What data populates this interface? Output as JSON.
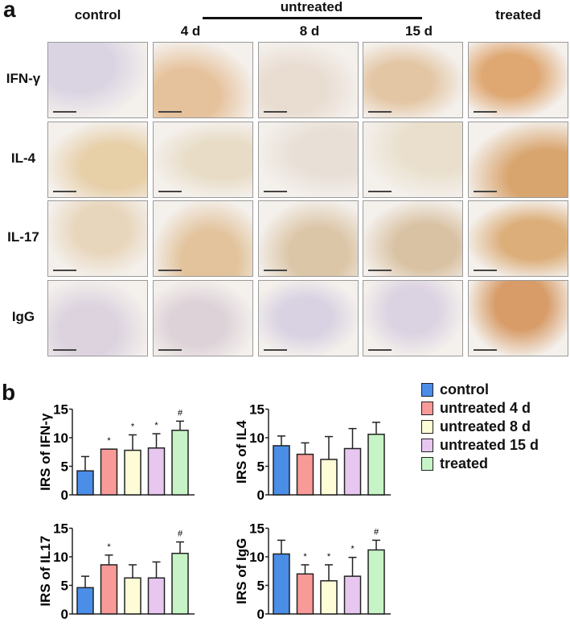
{
  "panel_a": {
    "letter": "a",
    "group_label": "untreated",
    "columns": [
      "control",
      "4 d",
      "8 d",
      "15 d",
      "treated"
    ],
    "rows": [
      "IFN-γ",
      "IL-4",
      "IL-17",
      "IgG"
    ],
    "tile_tints": [
      [
        "#d9d3e2",
        "#e6c29c",
        "#e9ddd2",
        "#e3c6a4",
        "#dfa873"
      ],
      [
        "#e7cfa8",
        "#e8dcc6",
        "#e8dfd6",
        "#e9dfcc",
        "#d9a56f"
      ],
      [
        "#e8d6bc",
        "#e2c39c",
        "#dcc6a8",
        "#d9c2a3",
        "#dcae7a"
      ],
      [
        "#dcd3df",
        "#ddd2d8",
        "#d8d2e2",
        "#dbd3e2",
        "#d79c68"
      ]
    ]
  },
  "panel_b": {
    "letter": "b",
    "legend": [
      {
        "label": "control",
        "color": "#4a8ee8"
      },
      {
        "label": "untreated 4 d",
        "color": "#f89a98"
      },
      {
        "label": "untreated 8 d",
        "color": "#fdfcd6"
      },
      {
        "label": "untreated 15 d",
        "color": "#e7c6f0"
      },
      {
        "label": "treated",
        "color": "#c6f4c6"
      }
    ]
  },
  "chart_data": [
    {
      "type": "bar",
      "title": "",
      "ylabel": "IRS of IFN-γ",
      "xlabel": "",
      "ylim": [
        0,
        15
      ],
      "yticks": [
        0,
        5,
        10,
        15
      ],
      "categories": [
        "control",
        "untreated 4 d",
        "untreated 8 d",
        "untreated 15 d",
        "treated"
      ],
      "values": [
        4.2,
        8.0,
        7.8,
        8.2,
        11.3
      ],
      "error_top": [
        6.7,
        8.0,
        10.5,
        10.7,
        12.9
      ],
      "annotations": [
        "",
        "*",
        "*",
        "*",
        "#"
      ],
      "grid": false
    },
    {
      "type": "bar",
      "title": "",
      "ylabel": "IRS of IL4",
      "xlabel": "",
      "ylim": [
        0,
        15
      ],
      "yticks": [
        0,
        5,
        10,
        15
      ],
      "categories": [
        "control",
        "untreated 4 d",
        "untreated 8 d",
        "untreated 15 d",
        "treated"
      ],
      "values": [
        8.6,
        7.1,
        6.2,
        8.1,
        10.6
      ],
      "error_top": [
        10.3,
        9.1,
        10.2,
        11.6,
        12.7
      ],
      "annotations": [
        "",
        "",
        "",
        "",
        ""
      ],
      "grid": false
    },
    {
      "type": "bar",
      "title": "",
      "ylabel": "IRS of IL17",
      "xlabel": "",
      "ylim": [
        0,
        15
      ],
      "yticks": [
        0,
        5,
        10,
        15
      ],
      "categories": [
        "control",
        "untreated 4 d",
        "untreated 8 d",
        "untreated 15 d",
        "treated"
      ],
      "values": [
        4.6,
        8.6,
        6.3,
        6.3,
        10.6
      ],
      "error_top": [
        6.6,
        10.3,
        8.6,
        9.1,
        12.6
      ],
      "annotations": [
        "",
        "*",
        "",
        "",
        "#"
      ],
      "grid": false
    },
    {
      "type": "bar",
      "title": "",
      "ylabel": "IRS of IgG",
      "xlabel": "",
      "ylim": [
        0,
        15
      ],
      "yticks": [
        0,
        5,
        10,
        15
      ],
      "categories": [
        "control",
        "untreated 4 d",
        "untreated 8 d",
        "untreated 15 d",
        "treated"
      ],
      "values": [
        10.5,
        7.0,
        5.8,
        6.6,
        11.2
      ],
      "error_top": [
        12.9,
        8.6,
        8.6,
        9.9,
        12.9
      ],
      "annotations": [
        "",
        "*",
        "*",
        "*",
        "#"
      ],
      "grid": false
    }
  ]
}
